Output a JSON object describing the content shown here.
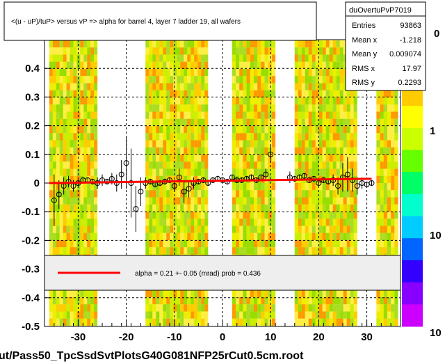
{
  "chart_data": {
    "type": "scatter",
    "title": "<(u - uP)/tuP> versus   vP => alpha for barrel 4, layer 7 ladder 19, all wafers",
    "footer_label": "ut/Pass50_TpcSsdSvtPlotsG40G081NFP25rCut0.5cm.root",
    "xlim": [
      -37,
      37
    ],
    "ylim": [
      -0.5,
      0.5
    ],
    "x_ticks": [
      -30,
      -20,
      -10,
      0,
      10,
      20,
      30
    ],
    "y_ticks": [
      -0.5,
      -0.4,
      -0.3,
      -0.2,
      -0.1,
      0,
      0.1,
      0.2,
      0.3,
      0.4
    ],
    "x_tick_labels": [
      "-30",
      "-20",
      "-10",
      "0",
      "10",
      "20",
      "30"
    ],
    "y_tick_labels": [
      "-0.5",
      "-0.4",
      "-0.3",
      "-0.2",
      "-0.1",
      "0",
      "0.1",
      "0.2",
      "0.3",
      "0.4"
    ],
    "gridlines_x": [
      -30,
      -20,
      -10,
      0,
      10,
      20,
      30
    ],
    "gridlines_y": [
      0.4,
      0.3,
      0.2,
      0.1,
      -0.1,
      -0.2,
      -0.3,
      -0.4
    ],
    "grid": true,
    "heatmap_bands": [
      [
        -36,
        -26
      ],
      [
        -16,
        -3
      ],
      [
        2,
        11
      ],
      [
        15,
        28
      ],
      [
        32,
        36.5
      ]
    ],
    "profile_points": [
      {
        "x": -35,
        "y": -0.06,
        "err": 0.09
      },
      {
        "x": -34,
        "y": -0.04,
        "err": 0.05
      },
      {
        "x": -33,
        "y": -0.01,
        "err": 0.03
      },
      {
        "x": -32,
        "y": 0.005,
        "err": 0.02
      },
      {
        "x": -31,
        "y": -0.01,
        "err": 0.02
      },
      {
        "x": -30,
        "y": 0.0,
        "err": 0.01
      },
      {
        "x": -29,
        "y": 0.01,
        "err": 0.01
      },
      {
        "x": -28,
        "y": 0.01,
        "err": 0.01
      },
      {
        "x": -27,
        "y": 0.005,
        "err": 0.01
      },
      {
        "x": -26,
        "y": 0.0,
        "err": 0.02
      },
      {
        "x": -25,
        "y": 0.01,
        "err": 0.02
      },
      {
        "x": -24,
        "y": 0.005,
        "err": 0.01
      },
      {
        "x": -23,
        "y": 0.015,
        "err": 0.02
      },
      {
        "x": -22,
        "y": 0.0,
        "err": 0.03
      },
      {
        "x": -21,
        "y": 0.03,
        "err": 0.05
      },
      {
        "x": -20,
        "y": 0.07,
        "err": 0.09
      },
      {
        "x": -19,
        "y": 0.0,
        "err": 0.12
      },
      {
        "x": -18,
        "y": -0.09,
        "err": 0.08
      },
      {
        "x": -17,
        "y": -0.03,
        "err": 0.05
      },
      {
        "x": -16,
        "y": 0.0,
        "err": 0.02
      },
      {
        "x": -15,
        "y": 0.005,
        "err": 0.01
      },
      {
        "x": -14,
        "y": -0.005,
        "err": 0.01
      },
      {
        "x": -13,
        "y": 0.0,
        "err": 0.01
      },
      {
        "x": -12,
        "y": 0.005,
        "err": 0.01
      },
      {
        "x": -11,
        "y": 0.01,
        "err": 0.01
      },
      {
        "x": -10,
        "y": -0.01,
        "err": 0.02
      },
      {
        "x": -9,
        "y": 0.02,
        "err": 0.03
      },
      {
        "x": -8,
        "y": -0.03,
        "err": 0.04
      },
      {
        "x": -7,
        "y": -0.02,
        "err": 0.03
      },
      {
        "x": -6,
        "y": 0.0,
        "err": 0.02
      },
      {
        "x": -5,
        "y": 0.005,
        "err": 0.01
      },
      {
        "x": -4,
        "y": 0.01,
        "err": 0.01
      },
      {
        "x": -3,
        "y": 0.0,
        "err": 0.01
      },
      {
        "x": -2,
        "y": 0.01,
        "err": 0.01
      },
      {
        "x": -1,
        "y": 0.015,
        "err": 0.01
      },
      {
        "x": 0,
        "y": 0.01,
        "err": 0.01
      },
      {
        "x": 1,
        "y": 0.005,
        "err": 0.01
      },
      {
        "x": 2,
        "y": 0.02,
        "err": 0.01
      },
      {
        "x": 3,
        "y": 0.01,
        "err": 0.01
      },
      {
        "x": 4,
        "y": 0.01,
        "err": 0.01
      },
      {
        "x": 5,
        "y": 0.015,
        "err": 0.01
      },
      {
        "x": 6,
        "y": 0.02,
        "err": 0.01
      },
      {
        "x": 7,
        "y": 0.01,
        "err": 0.01
      },
      {
        "x": 8,
        "y": 0.02,
        "err": 0.01
      },
      {
        "x": 9,
        "y": 0.03,
        "err": 0.02
      },
      {
        "x": 10,
        "y": 0.1,
        "err": 0.03
      },
      {
        "x": 14,
        "y": 0.02,
        "err": 0.02
      },
      {
        "x": 15,
        "y": 0.015,
        "err": 0.01
      },
      {
        "x": 16,
        "y": 0.02,
        "err": 0.01
      },
      {
        "x": 17,
        "y": 0.025,
        "err": 0.01
      },
      {
        "x": 18,
        "y": 0.01,
        "err": 0.01
      },
      {
        "x": 19,
        "y": 0.015,
        "err": 0.01
      },
      {
        "x": 20,
        "y": 0.0,
        "err": 0.01
      },
      {
        "x": 21,
        "y": 0.01,
        "err": 0.01
      },
      {
        "x": 22,
        "y": 0.005,
        "err": 0.01
      },
      {
        "x": 23,
        "y": 0.01,
        "err": 0.02
      },
      {
        "x": 24,
        "y": -0.01,
        "err": 0.03
      },
      {
        "x": 25,
        "y": 0.02,
        "err": 0.05
      },
      {
        "x": 26,
        "y": 0.03,
        "err": 0.06
      },
      {
        "x": 27,
        "y": 0.01,
        "err": 0.04
      },
      {
        "x": 28,
        "y": -0.01,
        "err": 0.03
      },
      {
        "x": 29,
        "y": 0.0,
        "err": 0.02
      },
      {
        "x": 30,
        "y": -0.005,
        "err": 0.01
      },
      {
        "x": 31,
        "y": 0.0,
        "err": 0.01
      }
    ],
    "fit_line": {
      "x": [
        -36,
        31
      ],
      "y": [
        0.0,
        0.015
      ],
      "color": "#ff0000"
    },
    "fit_label": "alpha =    0.21 +-  0.05 (mrad) prob = 0.436",
    "stats_box": {
      "name": "duOvertuPvP7019",
      "rows": [
        {
          "label": "Entries",
          "value": "93863"
        },
        {
          "label": "Mean x",
          "value": "-1.218"
        },
        {
          "label": "Mean y",
          "value": "0.009074"
        },
        {
          "label": "RMS x",
          "value": "17.97"
        },
        {
          "label": "RMS y",
          "value": "0.2293"
        }
      ]
    },
    "color_scale": {
      "labels": [
        "10",
        "10",
        "1",
        "0"
      ],
      "colors": [
        "#ff0000",
        "#ff6600",
        "#ffcc00",
        "#ffff00",
        "#ccff00",
        "#66ff00",
        "#00ff66",
        "#00ffcc",
        "#00ccff",
        "#0066ff",
        "#3300ff",
        "#8800ff",
        "#cc00ff"
      ]
    }
  }
}
